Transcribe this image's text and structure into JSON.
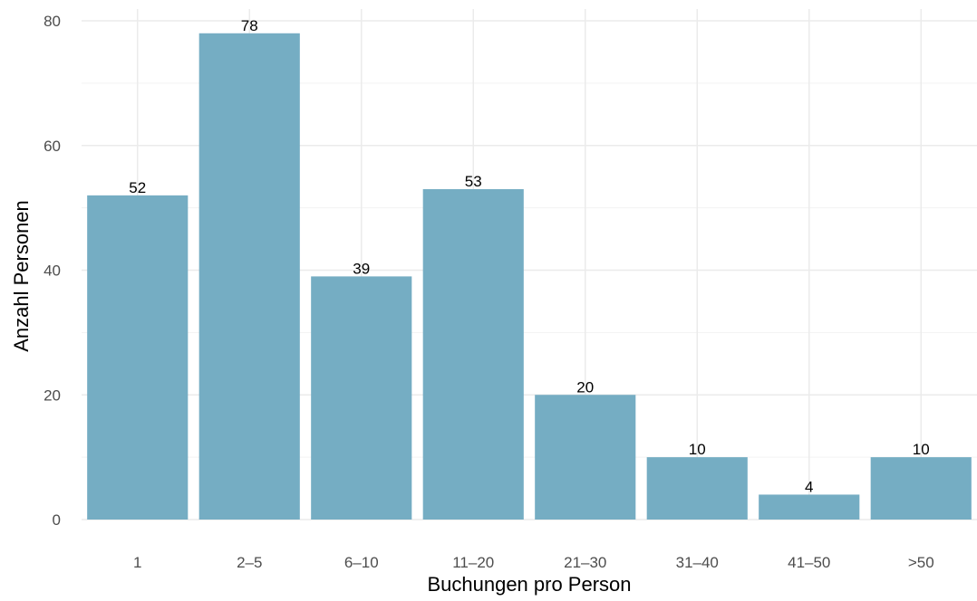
{
  "chart_data": {
    "type": "bar",
    "title": "",
    "xlabel": "Buchungen pro Person",
    "ylabel": "Anzahl Personen",
    "categories": [
      "1",
      "2–5",
      "6–10",
      "11–20",
      "21–30",
      "31–40",
      "41–50",
      ">50"
    ],
    "values": [
      52,
      78,
      39,
      53,
      20,
      10,
      4,
      10
    ],
    "data_labels": [
      "52",
      "78",
      "39",
      "53",
      "20",
      "10",
      "4",
      "10"
    ],
    "ylim": [
      0,
      82
    ],
    "yticks": [
      0,
      20,
      40,
      60,
      80
    ],
    "ytick_labels": [
      "0",
      "20",
      "40",
      "60",
      "80"
    ],
    "grid": true,
    "legend": "none"
  },
  "colors": {
    "bar": "#75adc3",
    "grid_major": "#ebebeb",
    "grid_minor": "#f3f3f3",
    "tick_text": "#4d4d4d",
    "text": "#000000"
  }
}
